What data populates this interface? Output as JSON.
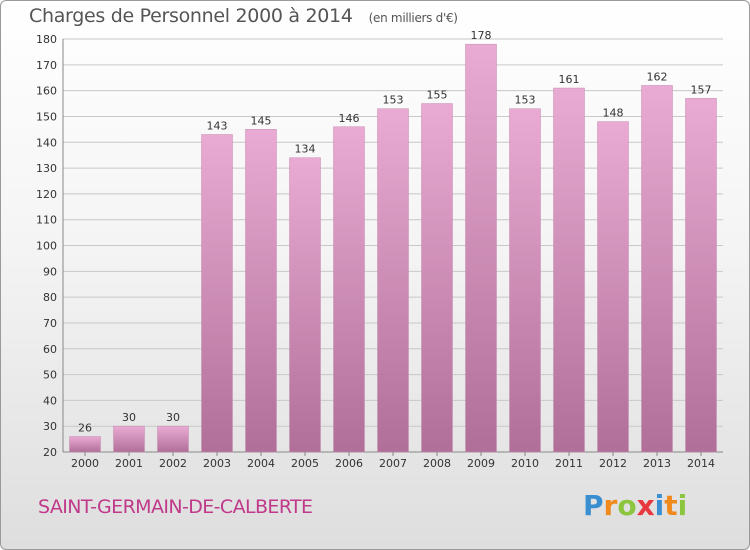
{
  "title": "Charges de Personnel 2000 à 2014",
  "subtitle": "(en milliers d'€)",
  "city": "SAINT-GERMAIN-DE-CALBERTE",
  "logo": {
    "letters": [
      "P",
      "r",
      "o",
      "x",
      "i",
      "t",
      "i"
    ],
    "colors": [
      "#3a8fd0",
      "#f08a1c",
      "#8cc63f",
      "#e8373e",
      "#3a8fd0",
      "#f08a1c",
      "#8cc63f"
    ]
  },
  "colors": {
    "bar_top": "#e9abd3",
    "bar_bottom": "#b06f98",
    "grid": "#c8c8c8",
    "axis_text": "#333333",
    "label_text": "#333333"
  },
  "chart_data": {
    "type": "bar",
    "categories": [
      "2000",
      "2001",
      "2002",
      "2003",
      "2004",
      "2005",
      "2006",
      "2007",
      "2008",
      "2009",
      "2010",
      "2011",
      "2012",
      "2013",
      "2014"
    ],
    "values": [
      26,
      30,
      30,
      143,
      145,
      134,
      146,
      153,
      155,
      178,
      153,
      161,
      148,
      162,
      157
    ],
    "ylim": [
      20,
      180
    ],
    "yticks": [
      20,
      30,
      40,
      50,
      60,
      70,
      80,
      90,
      100,
      110,
      120,
      130,
      140,
      150,
      160,
      170,
      180
    ],
    "grid": true,
    "title": "Charges de Personnel 2000 à 2014",
    "subtitle": "(en milliers d'€)",
    "xlabel": "",
    "ylabel": ""
  }
}
